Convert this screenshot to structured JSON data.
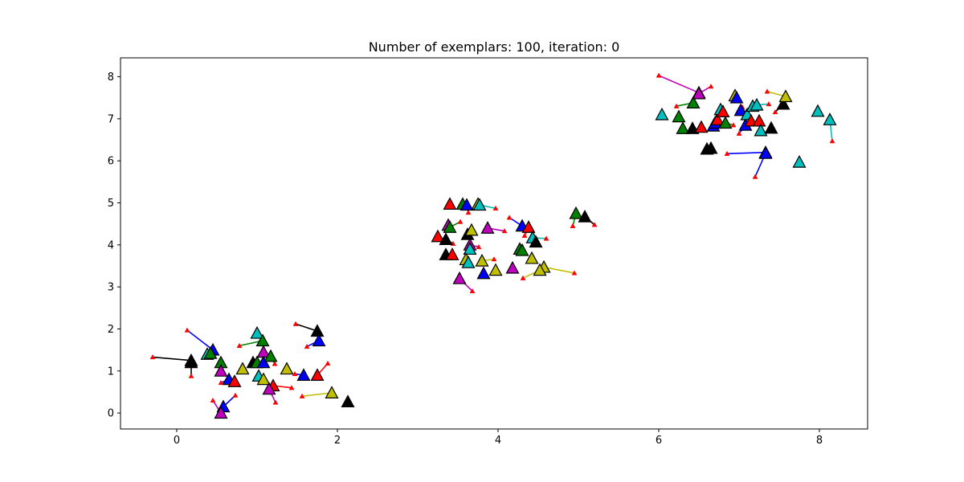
{
  "chart_data": {
    "type": "scatter",
    "title": "Number of exemplars: 100, iteration: 0",
    "xlabel": "",
    "ylabel": "",
    "xlim": [
      -0.7,
      8.6
    ],
    "ylim": [
      -0.38,
      8.45
    ],
    "xticks": [
      0,
      2,
      4,
      6,
      8
    ],
    "yticks": [
      0,
      1,
      2,
      3,
      4,
      5,
      6,
      7,
      8
    ],
    "grid": false,
    "legend": "none",
    "colors": {
      "b": "#0000ff",
      "g": "#008000",
      "r": "#ff0000",
      "c": "#00bfbf",
      "m": "#bf00bf",
      "y": "#bfbf00",
      "k": "#000000",
      "arrow_tip": "#ff0000"
    },
    "points": [
      {
        "x": 0.45,
        "y": 1.5,
        "c": "b",
        "tx": 0.13,
        "ty": 1.97
      },
      {
        "x": 0.38,
        "y": 1.4,
        "c": "c"
      },
      {
        "x": 0.42,
        "y": 1.42,
        "c": "g"
      },
      {
        "x": 0.55,
        "y": 1.2,
        "c": "g"
      },
      {
        "x": 0.55,
        "y": 1.0,
        "c": "m"
      },
      {
        "x": 0.18,
        "y": 1.25,
        "c": "k",
        "tx": -0.3,
        "ty": 1.33
      },
      {
        "x": 0.18,
        "y": 1.2,
        "c": "k",
        "tx": 0.18,
        "ty": 0.88
      },
      {
        "x": 0.65,
        "y": 0.8,
        "c": "b",
        "tx": 0.55,
        "ty": 0.72
      },
      {
        "x": 0.72,
        "y": 0.75,
        "c": "r"
      },
      {
        "x": 0.58,
        "y": 0.15,
        "c": "b",
        "tx": 0.73,
        "ty": 0.42
      },
      {
        "x": 0.55,
        "y": 0.0,
        "c": "m",
        "tx": 0.45,
        "ty": 0.3
      },
      {
        "x": 0.82,
        "y": 1.05,
        "c": "y"
      },
      {
        "x": 0.95,
        "y": 1.2,
        "c": "k"
      },
      {
        "x": 1.0,
        "y": 1.2,
        "c": "g"
      },
      {
        "x": 1.0,
        "y": 1.9,
        "c": "c"
      },
      {
        "x": 1.07,
        "y": 1.72,
        "c": "g",
        "tx": 0.78,
        "ty": 1.6
      },
      {
        "x": 1.08,
        "y": 1.45,
        "c": "m"
      },
      {
        "x": 1.08,
        "y": 1.2,
        "c": "b"
      },
      {
        "x": 1.17,
        "y": 1.35,
        "c": "g",
        "tx": 1.22,
        "ty": 1.17
      },
      {
        "x": 1.02,
        "y": 0.88,
        "c": "c"
      },
      {
        "x": 1.08,
        "y": 0.8,
        "c": "y"
      },
      {
        "x": 1.2,
        "y": 0.65,
        "c": "r",
        "tx": 1.43,
        "ty": 0.6
      },
      {
        "x": 1.15,
        "y": 0.57,
        "c": "m",
        "tx": 1.23,
        "ty": 0.25
      },
      {
        "x": 1.37,
        "y": 1.05,
        "c": "y"
      },
      {
        "x": 1.58,
        "y": 0.9,
        "c": "b",
        "tx": 1.47,
        "ty": 0.93
      },
      {
        "x": 1.75,
        "y": 0.9,
        "c": "r",
        "tx": 1.88,
        "ty": 1.18
      },
      {
        "x": 1.75,
        "y": 1.95,
        "c": "k",
        "tx": 1.48,
        "ty": 2.12
      },
      {
        "x": 1.77,
        "y": 1.72,
        "c": "b",
        "tx": 1.62,
        "ty": 1.58
      },
      {
        "x": 1.93,
        "y": 0.48,
        "c": "y",
        "tx": 1.56,
        "ty": 0.4
      },
      {
        "x": 2.13,
        "y": 0.27,
        "c": "k"
      },
      {
        "x": 3.4,
        "y": 4.97,
        "c": "r"
      },
      {
        "x": 3.56,
        "y": 4.97,
        "c": "g"
      },
      {
        "x": 3.61,
        "y": 4.95,
        "c": "b",
        "tx": 3.63,
        "ty": 4.77
      },
      {
        "x": 3.75,
        "y": 4.97,
        "c": "y"
      },
      {
        "x": 3.77,
        "y": 4.95,
        "c": "c",
        "tx": 3.97,
        "ty": 4.87
      },
      {
        "x": 3.38,
        "y": 4.47,
        "c": "m"
      },
      {
        "x": 3.4,
        "y": 4.42,
        "c": "g",
        "tx": 3.53,
        "ty": 4.55
      },
      {
        "x": 3.25,
        "y": 4.2,
        "c": "r"
      },
      {
        "x": 3.35,
        "y": 4.13,
        "c": "k",
        "tx": 3.44,
        "ty": 4.03
      },
      {
        "x": 3.62,
        "y": 4.25,
        "c": "k"
      },
      {
        "x": 3.67,
        "y": 4.35,
        "c": "y"
      },
      {
        "x": 3.65,
        "y": 4.0,
        "c": "m",
        "tx": 3.76,
        "ty": 3.95
      },
      {
        "x": 3.65,
        "y": 3.9,
        "c": "c"
      },
      {
        "x": 3.35,
        "y": 3.77,
        "c": "k"
      },
      {
        "x": 3.43,
        "y": 3.77,
        "c": "r"
      },
      {
        "x": 3.6,
        "y": 3.65,
        "c": "y"
      },
      {
        "x": 3.63,
        "y": 3.58,
        "c": "c"
      },
      {
        "x": 3.8,
        "y": 3.62,
        "c": "y",
        "tx": 3.95,
        "ty": 3.66
      },
      {
        "x": 3.52,
        "y": 3.2,
        "c": "m",
        "tx": 3.68,
        "ty": 2.9
      },
      {
        "x": 3.82,
        "y": 3.32,
        "c": "b"
      },
      {
        "x": 3.97,
        "y": 3.4,
        "c": "y"
      },
      {
        "x": 3.87,
        "y": 4.4,
        "c": "m",
        "tx": 4.08,
        "ty": 4.33
      },
      {
        "x": 4.18,
        "y": 3.45,
        "c": "m"
      },
      {
        "x": 4.27,
        "y": 3.9,
        "c": "g"
      },
      {
        "x": 4.3,
        "y": 3.87,
        "c": "g"
      },
      {
        "x": 4.3,
        "y": 4.45,
        "c": "b",
        "tx": 4.14,
        "ty": 4.65
      },
      {
        "x": 4.38,
        "y": 4.42,
        "c": "r",
        "tx": 4.33,
        "ty": 4.22
      },
      {
        "x": 4.43,
        "y": 4.17,
        "c": "c",
        "tx": 4.6,
        "ty": 4.15
      },
      {
        "x": 4.47,
        "y": 4.07,
        "c": "k"
      },
      {
        "x": 4.42,
        "y": 3.68,
        "c": "y"
      },
      {
        "x": 4.57,
        "y": 3.47,
        "c": "y",
        "tx": 4.95,
        "ty": 3.33
      },
      {
        "x": 4.52,
        "y": 3.4,
        "c": "y",
        "tx": 4.31,
        "ty": 3.21
      },
      {
        "x": 4.97,
        "y": 4.75,
        "c": "g",
        "tx": 4.93,
        "ty": 4.45
      },
      {
        "x": 5.08,
        "y": 4.67,
        "c": "k",
        "tx": 5.2,
        "ty": 4.48
      },
      {
        "x": 6.04,
        "y": 7.1,
        "c": "c"
      },
      {
        "x": 6.25,
        "y": 7.05,
        "c": "g"
      },
      {
        "x": 6.3,
        "y": 6.77,
        "c": "g"
      },
      {
        "x": 6.43,
        "y": 7.38,
        "c": "g",
        "tx": 6.22,
        "ty": 7.3
      },
      {
        "x": 6.42,
        "y": 6.77,
        "c": "k"
      },
      {
        "x": 6.5,
        "y": 7.62,
        "c": "m",
        "tx": 6.0,
        "ty": 8.03
      },
      {
        "x": 6.5,
        "y": 7.6,
        "c": "m",
        "tx": 6.65,
        "ty": 7.77
      },
      {
        "x": 6.53,
        "y": 6.8,
        "c": "r"
      },
      {
        "x": 6.6,
        "y": 6.28,
        "c": "k"
      },
      {
        "x": 6.65,
        "y": 6.3,
        "c": "k"
      },
      {
        "x": 6.68,
        "y": 6.83,
        "c": "b"
      },
      {
        "x": 6.7,
        "y": 6.9,
        "c": "b"
      },
      {
        "x": 6.73,
        "y": 6.98,
        "c": "r"
      },
      {
        "x": 6.77,
        "y": 7.22,
        "c": "c"
      },
      {
        "x": 6.8,
        "y": 7.17,
        "c": "r"
      },
      {
        "x": 6.83,
        "y": 6.9,
        "c": "g",
        "tx": 6.93,
        "ty": 6.85
      },
      {
        "x": 6.95,
        "y": 7.55,
        "c": "y"
      },
      {
        "x": 6.97,
        "y": 7.5,
        "c": "b"
      },
      {
        "x": 7.02,
        "y": 7.2,
        "c": "b"
      },
      {
        "x": 7.08,
        "y": 6.85,
        "c": "b",
        "tx": 7.0,
        "ty": 6.65
      },
      {
        "x": 7.1,
        "y": 7.1,
        "c": "c",
        "tx": 7.04,
        "ty": 7.28
      },
      {
        "x": 7.15,
        "y": 6.95,
        "c": "r"
      },
      {
        "x": 7.17,
        "y": 7.3,
        "c": "c"
      },
      {
        "x": 7.22,
        "y": 7.33,
        "c": "c",
        "tx": 7.37,
        "ty": 7.35
      },
      {
        "x": 7.25,
        "y": 6.95,
        "c": "r"
      },
      {
        "x": 7.27,
        "y": 6.72,
        "c": "c"
      },
      {
        "x": 7.4,
        "y": 6.78,
        "c": "k"
      },
      {
        "x": 7.55,
        "y": 7.35,
        "c": "k",
        "tx": 7.45,
        "ty": 7.16
      },
      {
        "x": 7.58,
        "y": 7.53,
        "c": "y",
        "tx": 7.35,
        "ty": 7.65
      },
      {
        "x": 7.33,
        "y": 6.2,
        "c": "b",
        "tx": 6.85,
        "ty": 6.17
      },
      {
        "x": 7.33,
        "y": 6.18,
        "c": "b",
        "tx": 7.2,
        "ty": 5.62
      },
      {
        "x": 7.75,
        "y": 5.97,
        "c": "c"
      },
      {
        "x": 7.98,
        "y": 7.18,
        "c": "c"
      },
      {
        "x": 8.13,
        "y": 6.98,
        "c": "c",
        "tx": 8.16,
        "ty": 6.47
      }
    ]
  }
}
